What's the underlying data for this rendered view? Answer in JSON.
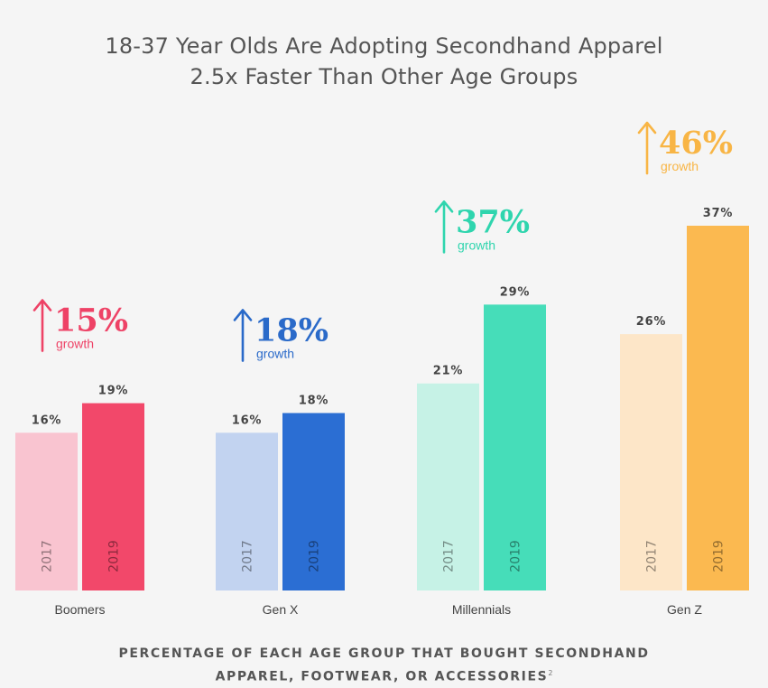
{
  "chart_data": {
    "type": "bar",
    "title": [
      "18-37 Year Olds Are Adopting Secondhand Apparel",
      "2.5x Faster Than Other Age Groups"
    ],
    "xlabel": "",
    "ylabel": "",
    "ylim": [
      0,
      37
    ],
    "series_years": [
      "2017",
      "2019"
    ],
    "groups": [
      {
        "name": "Boomers",
        "v2017": 16,
        "v2019": 19,
        "l2017": "16%",
        "l2019": "19%",
        "growth": "15%",
        "growth_word": "growth",
        "color_light": "#f9c4d0",
        "color_dark": "#f2486a",
        "color_accent": "#ee4266"
      },
      {
        "name": "Gen X",
        "v2017": 16,
        "v2019": 18,
        "l2017": "16%",
        "l2019": "18%",
        "growth": "18%",
        "growth_word": "growth",
        "color_light": "#c2d3f0",
        "color_dark": "#2b6ed3",
        "color_accent": "#2a6ac9"
      },
      {
        "name": "Millennials",
        "v2017": 21,
        "v2019": 29,
        "l2017": "21%",
        "l2019": "29%",
        "growth": "37%",
        "growth_word": "growth",
        "color_light": "#c6f2e6",
        "color_dark": "#46ddb9",
        "color_accent": "#2fd5ae"
      },
      {
        "name": "Gen Z",
        "v2017": 26,
        "v2019": 37,
        "l2017": "26%",
        "l2019": "37%",
        "growth": "46%",
        "growth_word": "growth",
        "color_light": "#fde6c8",
        "color_dark": "#fbb950",
        "color_accent": "#f8b545"
      }
    ],
    "footer": {
      "line1": "PERCENTAGE OF EACH AGE GROUP THAT BOUGHT SECONDHAND",
      "line2": "APPAREL, FOOTWEAR, OR ACCESSORIES",
      "note": "2"
    }
  }
}
